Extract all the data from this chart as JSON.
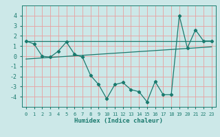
{
  "xlabel": "Humidex (Indice chaleur)",
  "ylabel": "",
  "x": [
    0,
    1,
    2,
    3,
    4,
    5,
    6,
    7,
    8,
    9,
    10,
    11,
    12,
    13,
    14,
    15,
    16,
    17,
    18,
    19,
    20,
    21,
    22,
    23
  ],
  "y_main": [
    1.5,
    1.2,
    0.0,
    -0.1,
    0.5,
    1.4,
    0.2,
    -0.1,
    -1.9,
    -2.8,
    -4.2,
    -2.8,
    -2.6,
    -3.3,
    -3.5,
    -4.5,
    -2.5,
    -3.8,
    -3.8,
    4.0,
    0.8,
    2.6,
    1.5,
    1.5
  ],
  "trend_x": [
    0,
    23
  ],
  "trend_upper": [
    1.5,
    1.5
  ],
  "trend_lower_start": -0.28,
  "trend_lower_end": 0.92,
  "line_color": "#1a7a6e",
  "bg_color": "#cce8e8",
  "grid_color": "#e8a0a0",
  "ylim": [
    -5,
    5
  ],
  "xlim": [
    -0.5,
    23.5
  ],
  "yticks": [
    -4,
    -3,
    -2,
    -1,
    0,
    1,
    2,
    3,
    4
  ]
}
